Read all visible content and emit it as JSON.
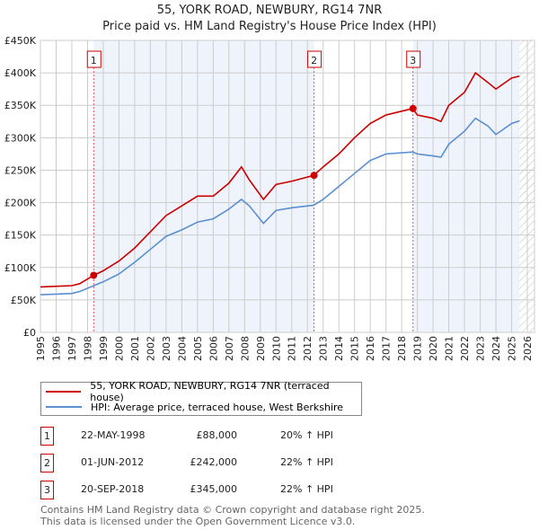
{
  "title": "55, YORK ROAD, NEWBURY, RG14 7NR",
  "subtitle": "Price paid vs. HM Land Registry's House Price Index (HPI)",
  "chart_data": {
    "type": "line",
    "xlim": [
      1995,
      2026
    ],
    "ylim": [
      0,
      450000
    ],
    "x_ticks": [
      "1995",
      "1996",
      "1997",
      "1998",
      "1999",
      "2000",
      "2001",
      "2002",
      "2003",
      "2004",
      "2005",
      "2006",
      "2007",
      "2008",
      "2009",
      "2010",
      "2011",
      "2012",
      "2013",
      "2014",
      "2015",
      "2016",
      "2017",
      "2018",
      "2019",
      "2020",
      "2021",
      "2022",
      "2023",
      "2024",
      "2025",
      "2026"
    ],
    "y_ticks": [
      {
        "v": 0,
        "label": "£0"
      },
      {
        "v": 50000,
        "label": "£50K"
      },
      {
        "v": 100000,
        "label": "£100K"
      },
      {
        "v": 150000,
        "label": "£150K"
      },
      {
        "v": 200000,
        "label": "£200K"
      },
      {
        "v": 250000,
        "label": "£250K"
      },
      {
        "v": 300000,
        "label": "£300K"
      },
      {
        "v": 350000,
        "label": "£350K"
      },
      {
        "v": 400000,
        "label": "£400K"
      },
      {
        "v": 450000,
        "label": "£450K"
      }
    ],
    "grid": true,
    "series": [
      {
        "name": "55, YORK ROAD, NEWBURY, RG14 7NR (terraced house)",
        "color": "#cc0000",
        "x": [
          1995,
          1996,
          1997,
          1997.5,
          1998.4,
          1999,
          2000,
          2001,
          2002,
          2003,
          2004,
          2005,
          2006,
          2007,
          2007.8,
          2008.3,
          2009.2,
          2010,
          2011,
          2012.4,
          2013,
          2014,
          2015,
          2016,
          2017,
          2018.7,
          2019,
          2020,
          2020.5,
          2021,
          2022,
          2022.7,
          2023.5,
          2024,
          2025,
          2025.5
        ],
        "y": [
          70000,
          71000,
          72000,
          75000,
          88000,
          95000,
          110000,
          130000,
          155000,
          180000,
          195000,
          210000,
          210000,
          230000,
          255000,
          235000,
          205000,
          228000,
          233000,
          242000,
          255000,
          275000,
          300000,
          322000,
          335000,
          345000,
          335000,
          330000,
          325000,
          350000,
          370000,
          400000,
          385000,
          375000,
          392000,
          395000
        ]
      },
      {
        "name": "HPI: Average price, terraced house, West Berkshire",
        "color": "#5b8fd0",
        "x": [
          1995,
          1996,
          1997,
          1997.5,
          1998.4,
          1999,
          2000,
          2001,
          2002,
          2003,
          2004,
          2005,
          2006,
          2007,
          2007.8,
          2008.3,
          2009.2,
          2010,
          2011,
          2012.4,
          2013,
          2014,
          2015,
          2016,
          2017,
          2018.7,
          2019,
          2020,
          2020.5,
          2021,
          2022,
          2022.7,
          2023.5,
          2024,
          2025,
          2025.5
        ],
        "y": [
          58000,
          59000,
          60000,
          63000,
          72000,
          78000,
          90000,
          108000,
          128000,
          148000,
          158000,
          170000,
          175000,
          190000,
          205000,
          195000,
          168000,
          188000,
          192000,
          196000,
          205000,
          225000,
          245000,
          265000,
          275000,
          278000,
          275000,
          272000,
          270000,
          290000,
          310000,
          330000,
          318000,
          305000,
          322000,
          326000
        ]
      }
    ],
    "sales": [
      {
        "id": "1",
        "x": 1998.39,
        "y": 88000,
        "date": "22-MAY-1998",
        "price": "£88,000",
        "hpi": "20% ↑ HPI"
      },
      {
        "id": "2",
        "x": 2012.42,
        "y": 242000,
        "date": "01-JUN-2012",
        "price": "£242,000",
        "hpi": "22% ↑ HPI"
      },
      {
        "id": "3",
        "x": 2018.72,
        "y": 345000,
        "date": "20-SEP-2018",
        "price": "£345,000",
        "hpi": "22% ↑ HPI"
      }
    ],
    "data_end": 2025.5,
    "legend_position": "below"
  },
  "footer": {
    "line1": "Contains HM Land Registry data © Crown copyright and database right 2025.",
    "line2": "This data is licensed under the Open Government Licence v3.0."
  }
}
